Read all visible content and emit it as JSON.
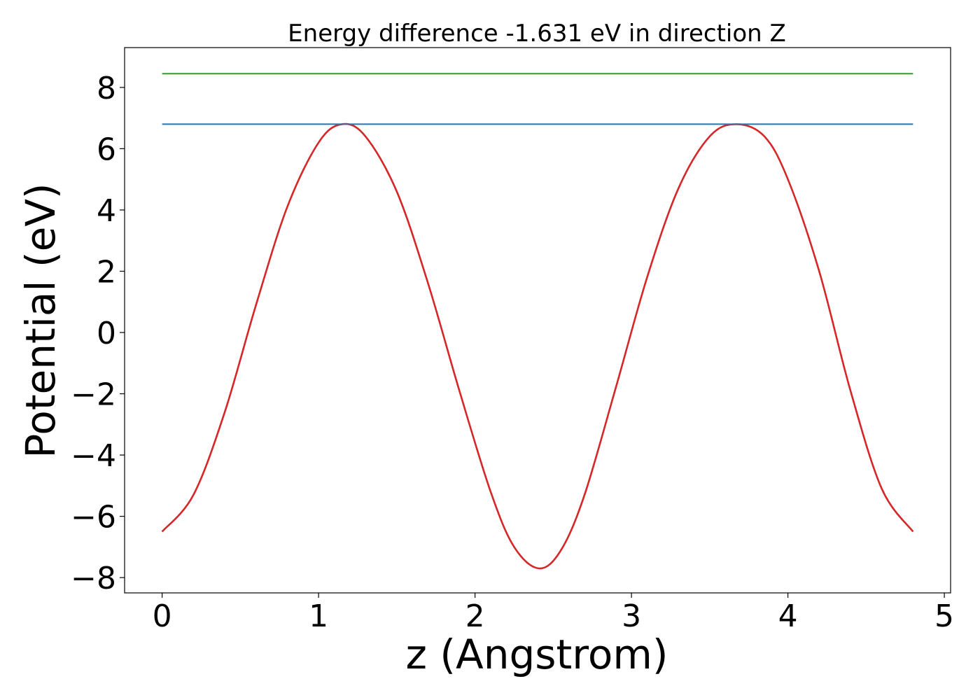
{
  "chart_data": {
    "type": "line",
    "title": "Energy difference -1.631 eV in direction Z",
    "xlabel": "z (Angstrom)",
    "ylabel": "Potential (eV)",
    "xlim": [
      -0.24,
      5.04
    ],
    "ylim": [
      -8.5,
      9.3
    ],
    "xticks": [
      0,
      1,
      2,
      3,
      4,
      5
    ],
    "yticks": [
      -8,
      -6,
      -4,
      -2,
      0,
      2,
      4,
      6,
      8
    ],
    "xtick_labels": [
      "0",
      "1",
      "2",
      "3",
      "4",
      "5"
    ],
    "ytick_labels": [
      "−8",
      "−6",
      "−4",
      "−2",
      "0",
      "2",
      "4",
      "6",
      "8"
    ],
    "grid": false,
    "series": [
      {
        "color": "#d62728",
        "style": "curve",
        "x": [
          0.0,
          0.2,
          0.4,
          0.6,
          0.8,
          1.0,
          1.15,
          1.3,
          1.5,
          1.7,
          1.9,
          2.1,
          2.25,
          2.41,
          2.55,
          2.7,
          2.9,
          3.1,
          3.3,
          3.5,
          3.67,
          3.85,
          4.0,
          4.2,
          4.4,
          4.6,
          4.8
        ],
        "y": [
          -6.5,
          -5.3,
          -2.6,
          0.9,
          4.1,
          6.2,
          6.8,
          6.4,
          4.6,
          1.6,
          -1.9,
          -5.2,
          -7.0,
          -7.7,
          -7.1,
          -5.3,
          -1.8,
          1.8,
          4.7,
          6.4,
          6.8,
          6.4,
          5.0,
          2.0,
          -1.9,
          -5.1,
          -6.5
        ]
      },
      {
        "color": "#1f77b4",
        "style": "line",
        "x": [
          0.0,
          4.8
        ],
        "y": [
          6.8,
          6.8
        ]
      },
      {
        "color": "#2ca02c",
        "style": "line",
        "x": [
          0.0,
          4.8
        ],
        "y": [
          8.45,
          8.45
        ]
      }
    ]
  }
}
